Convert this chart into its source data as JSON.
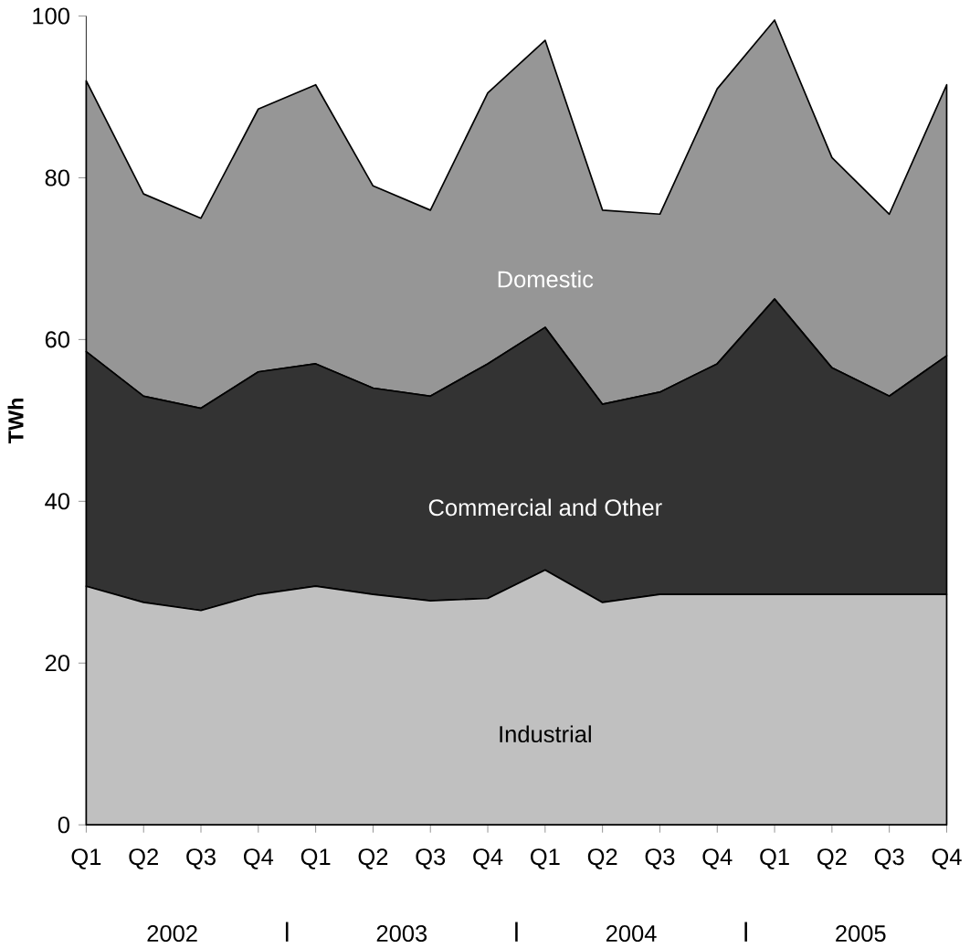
{
  "chart_data": {
    "type": "area",
    "stacked": true,
    "ylabel": "TWh",
    "categories": [
      "Q1",
      "Q2",
      "Q3",
      "Q4",
      "Q1",
      "Q2",
      "Q3",
      "Q4",
      "Q1",
      "Q2",
      "Q3",
      "Q4",
      "Q1",
      "Q2",
      "Q3",
      "Q4"
    ],
    "ylim": [
      0,
      100
    ],
    "yticks": [
      0,
      20,
      40,
      60,
      80,
      100
    ],
    "series": [
      {
        "name": "Industrial",
        "color": "#c0c0c0",
        "values": [
          29.5,
          27.5,
          26.5,
          28.5,
          29.5,
          28.5,
          27.7,
          28,
          31.5,
          27.5,
          28.5,
          28.5,
          28.5,
          28.5,
          28.5,
          28.5
        ]
      },
      {
        "name": "Commercial and Other",
        "color": "#333333",
        "values": [
          29,
          25.5,
          25,
          27.5,
          27.5,
          25.5,
          25.3,
          29,
          30,
          24.5,
          25,
          28.5,
          36.5,
          28,
          24.5,
          29.5
        ]
      },
      {
        "name": "Domestic",
        "color": "#969696",
        "values": [
          33.5,
          25,
          23.5,
          32.5,
          34.5,
          25,
          23,
          33.5,
          35.5,
          24,
          22,
          34,
          34.5,
          26,
          22.5,
          33.5
        ]
      }
    ],
    "annotations": [
      "2002",
      "2003",
      "2004",
      "2005"
    ]
  }
}
